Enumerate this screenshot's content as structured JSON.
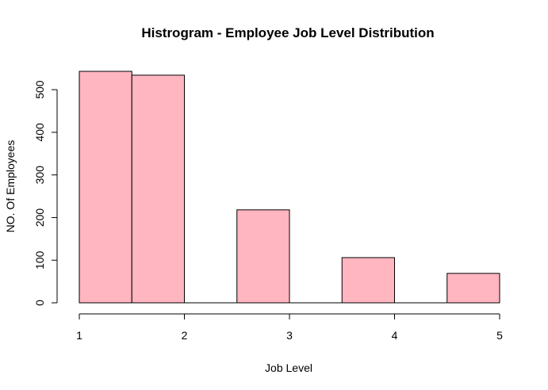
{
  "chart_data": {
    "type": "histogram",
    "title": "Histrogram - Employee Job Level Distribution",
    "xlabel": "Job Level",
    "ylabel": "NO. Of Employees",
    "bins": [
      {
        "start": 1.0,
        "end": 1.5,
        "value": 543
      },
      {
        "start": 1.5,
        "end": 2.0,
        "value": 534
      },
      {
        "start": 2.0,
        "end": 2.5,
        "value": 0
      },
      {
        "start": 2.5,
        "end": 3.0,
        "value": 218
      },
      {
        "start": 3.0,
        "end": 3.5,
        "value": 0
      },
      {
        "start": 3.5,
        "end": 4.0,
        "value": 106
      },
      {
        "start": 4.0,
        "end": 4.5,
        "value": 0
      },
      {
        "start": 4.5,
        "end": 5.0,
        "value": 69
      }
    ],
    "xlim": [
      1,
      5
    ],
    "ylim": [
      0,
      543
    ],
    "x_ticks": [
      "1",
      "2",
      "3",
      "4",
      "5"
    ],
    "y_ticks": [
      "0",
      "100",
      "200",
      "300",
      "400",
      "500"
    ],
    "bar_color": "#FFB6C1",
    "edge_color": "#000000",
    "grid": false
  }
}
